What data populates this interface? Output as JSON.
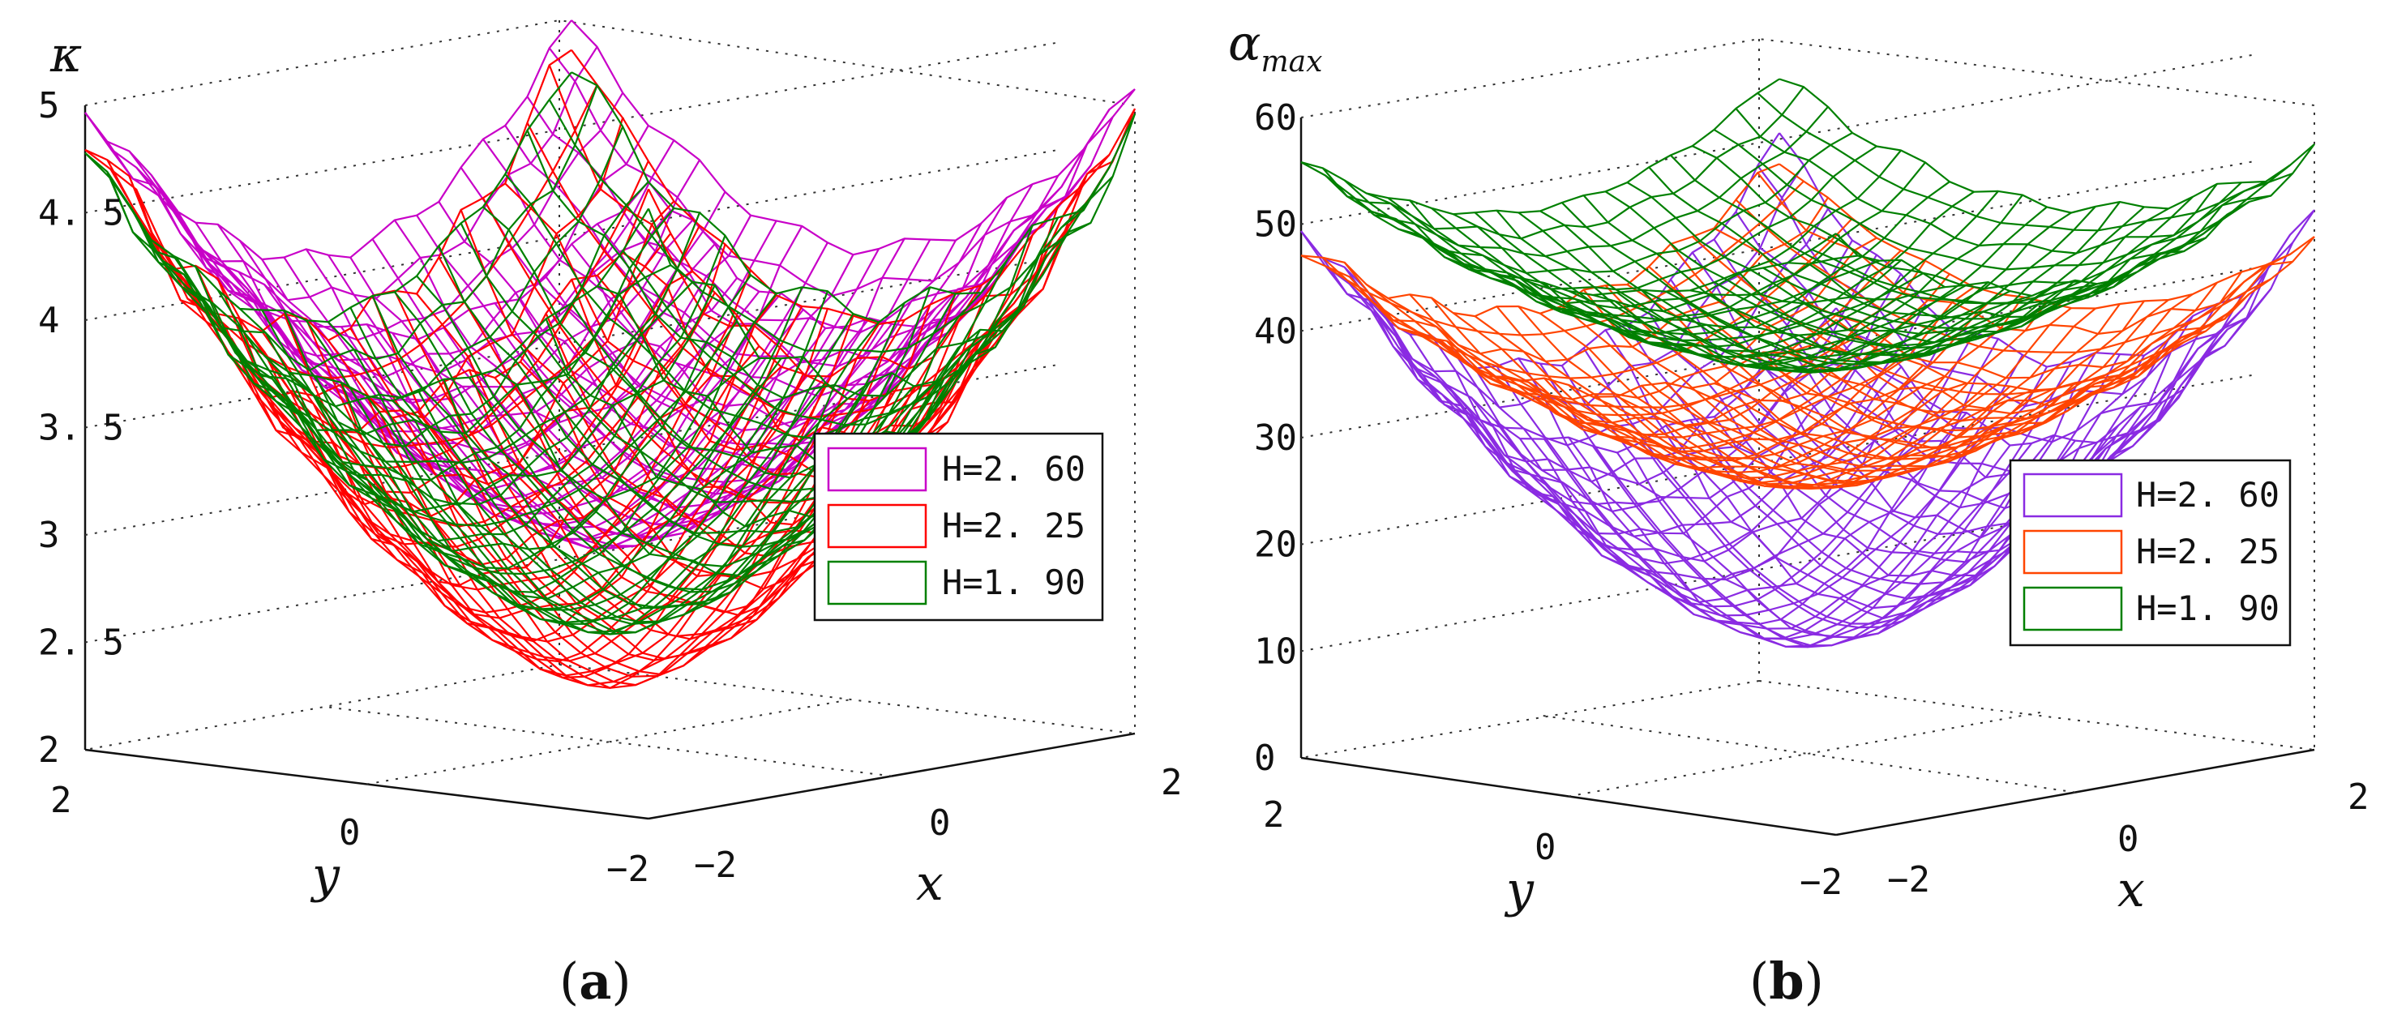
{
  "chart_data": [
    {
      "type": "surface",
      "panel_label": "a",
      "title": "",
      "zlabel": "κ",
      "xlabel": "x",
      "ylabel": "y",
      "xlim": [
        -2,
        2
      ],
      "ylim": [
        -2,
        2
      ],
      "zlim": [
        2,
        5
      ],
      "x_ticks": [
        "−2",
        "0",
        "2"
      ],
      "y_ticks": [
        "2",
        "0",
        "−2"
      ],
      "z_ticks": [
        "2",
        "2. 5",
        "3",
        "3. 5",
        "4",
        "4. 5",
        "5"
      ],
      "legend_position": "right",
      "series": [
        {
          "name": "H=2. 60",
          "color": "#c800c8",
          "min": 2.9,
          "max": 5.0
        },
        {
          "name": "H=2. 25",
          "color": "#ff0000",
          "min": 2.25,
          "max": 4.9
        },
        {
          "name": "H=1. 90",
          "color": "#008000",
          "min": 2.5,
          "max": 4.8
        }
      ]
    },
    {
      "type": "surface",
      "panel_label": "b",
      "title": "",
      "zlabel": "α",
      "zlabel_sub": "max",
      "xlabel": "x",
      "ylabel": "y",
      "xlim": [
        -2,
        2
      ],
      "ylim": [
        -2,
        2
      ],
      "zlim": [
        0,
        60
      ],
      "x_ticks": [
        "−2",
        "0",
        "2"
      ],
      "y_ticks": [
        "2",
        "0",
        "−2"
      ],
      "z_ticks": [
        "0",
        "10",
        "20",
        "30",
        "40",
        "50",
        "60"
      ],
      "legend_position": "right",
      "series": [
        {
          "name": "H=2. 60",
          "color": "#8a2be2",
          "min": 10,
          "max": 50
        },
        {
          "name": "H=2. 25",
          "color": "#ff4500",
          "min": 25,
          "max": 48
        },
        {
          "name": "H=1. 90",
          "color": "#008000",
          "min": 36,
          "max": 56
        }
      ]
    }
  ]
}
